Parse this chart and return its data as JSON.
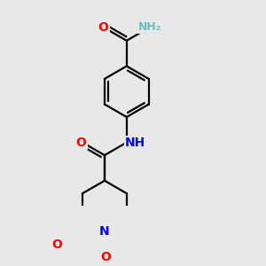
{
  "bg_color": "#e8e8e8",
  "atom_colors": {
    "C": "#000000",
    "N": "#0000ff",
    "O": "#ff0000",
    "H": "#6dbfbf"
  },
  "bond_color": "#000000",
  "bond_width": 1.6,
  "figsize": [
    3.0,
    3.0
  ],
  "dpi": 100,
  "font_size_atoms": 10,
  "font_size_small": 9,
  "xlim": [
    -2.5,
    3.0
  ],
  "ylim": [
    -4.5,
    3.5
  ]
}
